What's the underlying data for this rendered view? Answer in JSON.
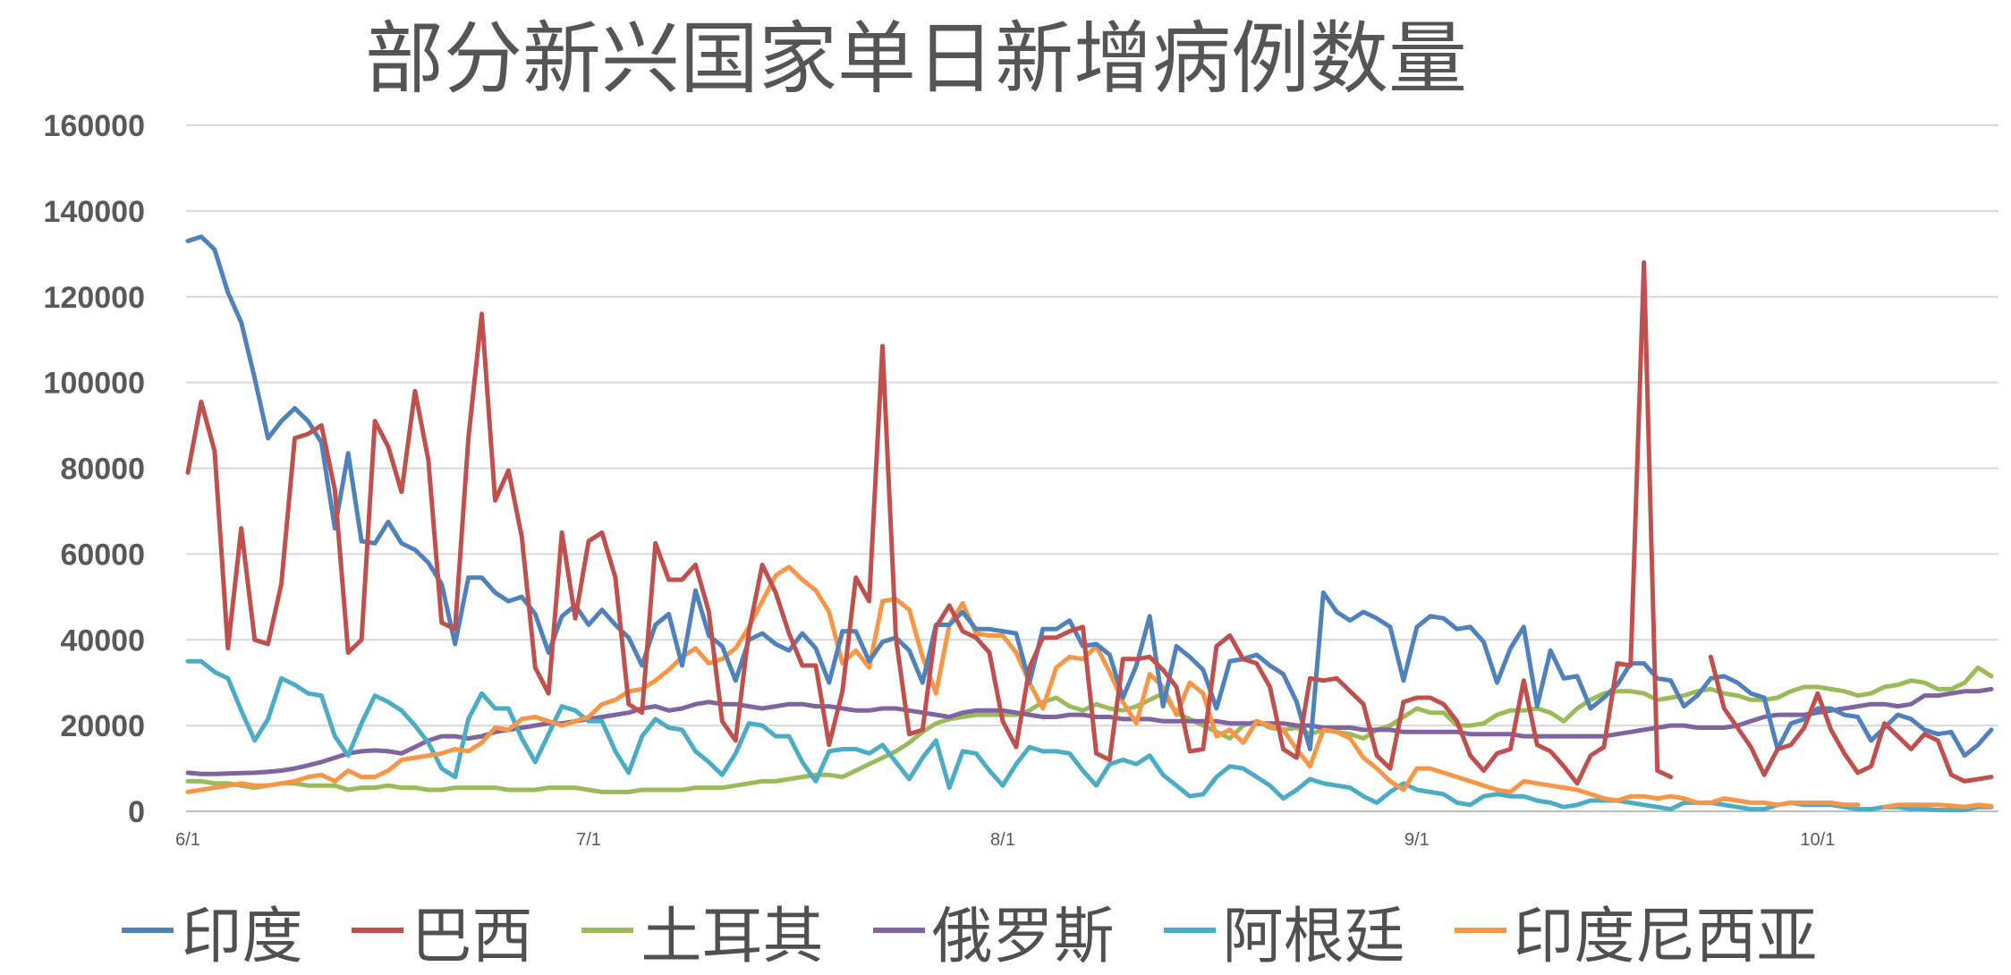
{
  "chart_data": {
    "type": "line",
    "title": "部分新兴国家单日新增病例数量",
    "xlabel": "",
    "ylabel": "",
    "ylim": [
      0,
      160000
    ],
    "yticks": [
      "0",
      "20000",
      "40000",
      "60000",
      "80000",
      "100000",
      "120000",
      "140000",
      "160000"
    ],
    "xticks": [
      {
        "label": "6/1",
        "index": 0
      },
      {
        "label": "7/1",
        "index": 30
      },
      {
        "label": "8/1",
        "index": 61
      },
      {
        "label": "9/1",
        "index": 92
      },
      {
        "label": "10/1",
        "index": 122
      }
    ],
    "grid": true,
    "legend_position": "bottom",
    "series": [
      {
        "name": "印度",
        "color": "#4F81BD",
        "values": [
          133000,
          134000,
          131000,
          121000,
          114000,
          101000,
          87000,
          91000,
          94000,
          91000,
          86000,
          66000,
          83500,
          63000,
          62500,
          67500,
          62500,
          61000,
          58000,
          53000,
          39000,
          54500,
          54500,
          51000,
          49000,
          50000,
          46000,
          37000,
          45500,
          48000,
          43500,
          47000,
          43500,
          40500,
          34000,
          43500,
          46000,
          34000,
          51500,
          41000,
          38500,
          30500,
          40000,
          41500,
          39000,
          37500,
          41500,
          38000,
          30000,
          42000,
          42000,
          35000,
          39500,
          40500,
          37500,
          30000,
          43500,
          43500,
          46500,
          42500,
          42500,
          42000,
          41500,
          30000,
          42500,
          42500,
          44500,
          38500,
          39000,
          36500,
          26500,
          34000,
          45500,
          24500,
          38500,
          36000,
          33000,
          24000,
          35000,
          35500,
          36500,
          34000,
          32000,
          25500,
          14500,
          51000,
          46500,
          44500,
          46500,
          45000,
          43000,
          30500,
          43000,
          45500,
          45000,
          42500,
          43000,
          39500,
          30000,
          38000,
          43000,
          24500,
          37500,
          31000,
          31500,
          24000,
          26500,
          29500,
          34500,
          34500,
          31000,
          30500,
          24500,
          27000,
          31000,
          31500,
          30000,
          27500,
          26500,
          14500,
          20500,
          21500,
          24000,
          24000,
          22500,
          22000,
          16500,
          19500,
          22500,
          21500,
          19000,
          18000,
          18500,
          13000,
          15500,
          19000
        ]
      },
      {
        "name": "巴西",
        "color": "#C0504D",
        "values": [
          79000,
          95500,
          84000,
          38000,
          66000,
          40000,
          39000,
          53000,
          87000,
          88000,
          90000,
          75000,
          37000,
          40000,
          91000,
          85000,
          74500,
          98000,
          82000,
          44000,
          42500,
          87000,
          116000,
          72500,
          79500,
          64000,
          33500,
          27500,
          65000,
          45000,
          63000,
          65000,
          54500,
          25000,
          23000,
          62500,
          54000,
          54000,
          57500,
          46500,
          21000,
          16500,
          42000,
          57500,
          51000,
          41500,
          34000,
          34000,
          15500,
          28000,
          54500,
          49000,
          108500,
          40500,
          18000,
          19000,
          43000,
          48000,
          42000,
          40500,
          37000,
          21000,
          15000,
          33500,
          40500,
          40500,
          42000,
          43000,
          13500,
          12000,
          35500,
          35500,
          36000,
          33000,
          29000,
          14000,
          14500,
          38500,
          41000,
          35500,
          34500,
          29000,
          14500,
          12500,
          31000,
          30500,
          31000,
          28000,
          25000,
          13000,
          10000,
          25500,
          26500,
          26500,
          25000,
          21000,
          13000,
          9500,
          13500,
          14500,
          30500,
          15500,
          14000,
          10500,
          6500,
          13000,
          15000,
          34500,
          34000,
          128000,
          9500,
          8000,
          null,
          null,
          36000,
          24000,
          19500,
          15000,
          8500,
          14500,
          15500,
          19500,
          27500,
          19000,
          13500,
          9000,
          10500,
          20500,
          17500,
          14500,
          18000,
          16500,
          8500,
          7000,
          7500,
          8000
        ]
      },
      {
        "name": "土耳其",
        "color": "#9BBB59",
        "values": [
          7000,
          7000,
          6500,
          6500,
          6000,
          5500,
          6000,
          6500,
          6500,
          6000,
          6000,
          6000,
          5000,
          5500,
          5500,
          6000,
          5500,
          5500,
          5000,
          5000,
          5500,
          5500,
          5500,
          5500,
          5000,
          5000,
          5000,
          5500,
          5500,
          5500,
          5000,
          4500,
          4500,
          4500,
          5000,
          5000,
          5000,
          5000,
          5500,
          5500,
          5500,
          6000,
          6500,
          7000,
          7000,
          7500,
          8000,
          8500,
          8500,
          8000,
          9500,
          11000,
          12500,
          14000,
          16000,
          18500,
          20500,
          21500,
          22000,
          22500,
          22500,
          22500,
          22500,
          23500,
          25500,
          26500,
          24500,
          23500,
          25000,
          24000,
          23500,
          24500,
          26000,
          27500,
          23000,
          21500,
          20000,
          18500,
          17000,
          20000,
          21000,
          19500,
          19000,
          19500,
          18000,
          19000,
          18500,
          18000,
          17000,
          19000,
          20000,
          22000,
          24000,
          23000,
          23000,
          20000,
          20000,
          20500,
          22500,
          23500,
          23500,
          24000,
          23000,
          21000,
          24000,
          26000,
          27500,
          28000,
          28000,
          27500,
          26000,
          26500,
          27000,
          28000,
          28500,
          27500,
          27000,
          26000,
          26000,
          26500,
          28000,
          29000,
          29000,
          28500,
          28000,
          27000,
          27500,
          29000,
          29500,
          30500,
          30000,
          28500,
          28500,
          30000,
          33500,
          31500
        ]
      },
      {
        "name": "俄罗斯",
        "color": "#8064A2",
        "values": [
          9000,
          8700,
          8700,
          8800,
          8900,
          9000,
          9200,
          9500,
          10000,
          10700,
          11500,
          12500,
          13500,
          14000,
          14200,
          14000,
          13500,
          15000,
          16500,
          17500,
          17500,
          17000,
          17500,
          18500,
          19000,
          19500,
          20000,
          20500,
          20500,
          21000,
          21500,
          22000,
          22500,
          23000,
          24000,
          24500,
          23500,
          24000,
          25000,
          25500,
          25000,
          25000,
          24500,
          24000,
          24500,
          25000,
          25000,
          24500,
          24500,
          24000,
          23500,
          23500,
          24000,
          24000,
          23500,
          23000,
          22500,
          22000,
          23000,
          23500,
          23500,
          23500,
          23000,
          22500,
          22000,
          22000,
          22500,
          22500,
          22000,
          22000,
          21500,
          21500,
          21500,
          21000,
          21000,
          21000,
          21000,
          21000,
          20500,
          20500,
          20500,
          20500,
          20500,
          20000,
          20000,
          19500,
          19500,
          19500,
          19000,
          19000,
          19000,
          18500,
          18500,
          18500,
          18500,
          18500,
          18000,
          18000,
          18000,
          18000,
          17500,
          17500,
          17500,
          17500,
          17500,
          17500,
          17500,
          18000,
          18500,
          19000,
          19500,
          20000,
          20000,
          19500,
          19500,
          19500,
          20000,
          21000,
          22000,
          22500,
          22500,
          22500,
          23000,
          23500,
          24000,
          24500,
          25000,
          25000,
          24500,
          25000,
          27000,
          27000,
          27500,
          28000,
          28000,
          28500
        ]
      },
      {
        "name": "阿根廷",
        "color": "#4BACC6",
        "values": [
          35000,
          35000,
          32500,
          31000,
          23500,
          16500,
          21500,
          31000,
          29500,
          27500,
          27000,
          17500,
          13000,
          20500,
          27000,
          25500,
          23500,
          20000,
          16000,
          10000,
          8000,
          21500,
          27500,
          24000,
          24000,
          17000,
          11500,
          18000,
          24500,
          23500,
          21000,
          21000,
          14000,
          9000,
          17500,
          21500,
          19500,
          19000,
          14000,
          11500,
          8500,
          13500,
          20500,
          20000,
          17500,
          17500,
          11500,
          7000,
          14000,
          14500,
          14500,
          13500,
          15500,
          11500,
          7500,
          12500,
          16500,
          5500,
          14000,
          13500,
          9500,
          6000,
          11000,
          15000,
          14000,
          14000,
          13500,
          9500,
          6000,
          11000,
          12000,
          11000,
          13000,
          8500,
          6000,
          3500,
          4000,
          8000,
          10500,
          10000,
          8000,
          6000,
          3000,
          5000,
          7500,
          6500,
          6000,
          5500,
          3500,
          2000,
          4500,
          6500,
          5000,
          4500,
          4000,
          2000,
          1500,
          3500,
          4000,
          3500,
          3500,
          2500,
          2000,
          1000,
          1500,
          2500,
          2500,
          2500,
          2000,
          1500,
          1000,
          500,
          2000,
          2000,
          2000,
          1500,
          1000,
          500,
          500,
          1500,
          2000,
          1500,
          1500,
          1500,
          1000,
          500,
          500,
          1000,
          1000,
          500,
          500,
          300,
          300,
          300,
          1000,
          1000
        ]
      },
      {
        "name": "印度尼西亚",
        "color": "#F79646",
        "values": [
          4500,
          5000,
          5500,
          6000,
          6500,
          6000,
          6000,
          6500,
          7000,
          8000,
          8500,
          7000,
          9500,
          8000,
          8000,
          9500,
          12000,
          12500,
          13000,
          13500,
          14500,
          14000,
          16000,
          19500,
          19000,
          21500,
          22000,
          21000,
          20000,
          21000,
          22000,
          25000,
          26000,
          28000,
          28500,
          30500,
          33000,
          36000,
          38000,
          34500,
          35500,
          38000,
          43000,
          49000,
          55000,
          57000,
          54000,
          51500,
          46500,
          34500,
          37500,
          33500,
          49000,
          49500,
          47000,
          36000,
          27500,
          43500,
          48500,
          41500,
          41000,
          41000,
          37000,
          30000,
          24000,
          33500,
          36000,
          35500,
          38500,
          32500,
          25500,
          20500,
          32000,
          29000,
          22500,
          30000,
          27500,
          17500,
          19000,
          16000,
          21000,
          20000,
          19000,
          14500,
          10500,
          19000,
          18500,
          17000,
          12500,
          10000,
          7000,
          5000,
          10000,
          10000,
          9000,
          8000,
          7000,
          6000,
          5000,
          4500,
          7000,
          6500,
          6000,
          5500,
          5000,
          4000,
          3000,
          2500,
          3500,
          3500,
          3000,
          3500,
          3000,
          2000,
          2000,
          3000,
          2500,
          2000,
          2000,
          1500,
          2000,
          2000,
          2000,
          2000,
          1500,
          1500,
          null,
          1000,
          1500,
          1500,
          1500,
          1500,
          1300,
          1000,
          1500,
          1200
        ]
      }
    ]
  }
}
